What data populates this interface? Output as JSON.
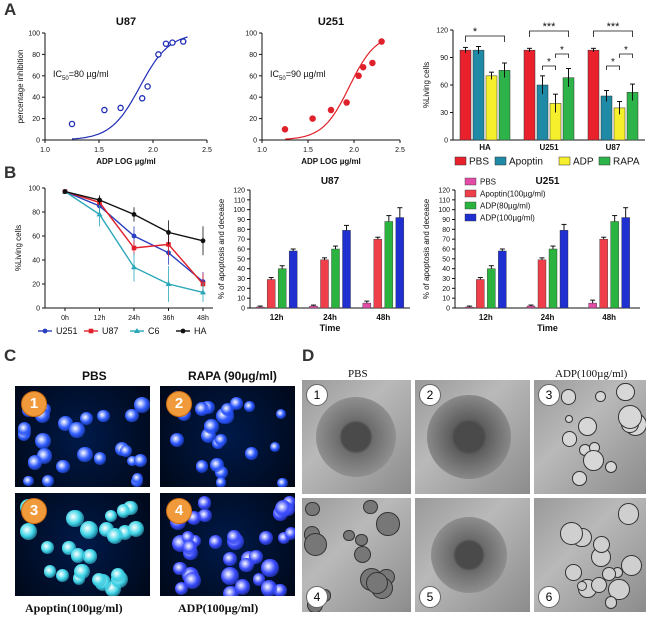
{
  "labels": {
    "A": "A",
    "B": "B",
    "C": "C",
    "D": "D"
  },
  "colors": {
    "PBS": "#e8212c",
    "Apoptin": "#1f8aa5",
    "ADP": "#f6ef2b",
    "RAPA": "#2db34a",
    "U251": "#2a3fbf",
    "U87": "#e0202a",
    "C6": "#2aa7b9",
    "HA": "#111111",
    "Apoptin100": "#ef3f4a",
    "ADP80": "#2bb33f",
    "ADP100": "#1f2fd0",
    "PBSb": "#e24ba6"
  },
  "chart_data": [
    {
      "id": "u87-curve",
      "type": "scatter",
      "title": "U87",
      "xlabel": "ADP LOG µg/ml",
      "ylabel": "percentage inhibition",
      "xlim": [
        1.0,
        2.5
      ],
      "ylim": [
        0,
        100
      ],
      "xticks": [
        "1.0",
        "1.5",
        "2.0",
        "2.5"
      ],
      "yticks": [
        "0",
        "20",
        "40",
        "60",
        "80",
        "100"
      ],
      "annotation": {
        "prefix": "IC",
        "sub": "50",
        "suffix": "=80 µg/ml"
      },
      "x": [
        1.25,
        1.55,
        1.7,
        1.9,
        1.95,
        2.05,
        2.12,
        2.18,
        2.28
      ],
      "y": [
        15,
        28,
        30,
        39,
        50,
        80,
        90,
        91,
        92
      ],
      "fit": {
        "ic50": 1.88,
        "hill": 3.2,
        "min": 0,
        "max": 100
      },
      "color": "#1f2db5",
      "marker": "open"
    },
    {
      "id": "u251-curve",
      "type": "scatter",
      "title": "U251",
      "xlabel": "ADP LOG µg/ml",
      "ylabel": "",
      "xlim": [
        1.0,
        2.5
      ],
      "ylim": [
        0,
        100
      ],
      "xticks": [
        "1.0",
        "1.5",
        "2.0",
        "2.5"
      ],
      "yticks": [
        "0",
        "20",
        "40",
        "60",
        "80",
        "100"
      ],
      "annotation": {
        "prefix": "IC",
        "sub": "50",
        "suffix": "=90 µg/ml"
      },
      "x": [
        1.25,
        1.55,
        1.75,
        1.92,
        2.05,
        2.1,
        2.2,
        2.3
      ],
      "y": [
        10,
        20,
        28,
        35,
        60,
        68,
        72,
        92
      ],
      "fit": {
        "ic50": 1.95,
        "hill": 3.0,
        "min": 0,
        "max": 100
      },
      "color": "#e0202a",
      "marker": "filled"
    },
    {
      "id": "living-bar",
      "type": "bar",
      "title": "",
      "ylabel": "%Living cells",
      "ylim": [
        0,
        120
      ],
      "yticks": [
        "0",
        "30",
        "60",
        "90",
        "120"
      ],
      "categories": [
        "HA",
        "U251",
        "U87"
      ],
      "series": [
        {
          "name": "PBS",
          "values": [
            98,
            98,
            98
          ],
          "err": [
            3,
            2,
            2
          ]
        },
        {
          "name": "Apoptin",
          "values": [
            98,
            60,
            48
          ],
          "err": [
            4,
            10,
            6
          ]
        },
        {
          "name": "ADP",
          "values": [
            70,
            40,
            35
          ],
          "err": [
            4,
            10,
            7
          ]
        },
        {
          "name": "RAPA",
          "values": [
            76,
            68,
            52
          ],
          "err": [
            8,
            10,
            9
          ]
        }
      ],
      "legend": [
        "PBS",
        "Apoptin",
        "ADP",
        "RAPA"
      ],
      "significance": [
        {
          "cat": 0,
          "marks": [
            "*"
          ]
        },
        {
          "cat": 1,
          "marks": [
            "***",
            "*",
            "*"
          ]
        },
        {
          "cat": 2,
          "marks": [
            "***",
            "*",
            "*"
          ]
        }
      ]
    },
    {
      "id": "time-line",
      "type": "line",
      "title": "",
      "ylabel": "%Living cells",
      "ylim": [
        0,
        100
      ],
      "yticks": [
        "0",
        "20",
        "40",
        "60",
        "80",
        "100"
      ],
      "categories": [
        "0h",
        "12h",
        "24h",
        "36h",
        "48h"
      ],
      "series": [
        {
          "name": "U251",
          "values": [
            97,
            85,
            60,
            46,
            22
          ],
          "err": [
            2,
            6,
            8,
            10,
            8
          ]
        },
        {
          "name": "U87",
          "values": [
            97,
            88,
            50,
            53,
            20
          ],
          "err": [
            2,
            5,
            6,
            10,
            9
          ]
        },
        {
          "name": "C6",
          "values": [
            97,
            78,
            34,
            20,
            13
          ],
          "err": [
            2,
            10,
            12,
            15,
            8
          ]
        },
        {
          "name": "HA",
          "values": [
            97,
            90,
            78,
            63,
            56
          ],
          "err": [
            2,
            4,
            6,
            10,
            12
          ]
        }
      ],
      "legend": [
        "U251",
        "U87",
        "C6",
        "HA"
      ]
    },
    {
      "id": "u87-apoptosis",
      "type": "bar",
      "title": "U87",
      "xlabel": "Time",
      "ylabel": "% of apoptosis and decease",
      "ylim": [
        0,
        120
      ],
      "yticks": [
        "0",
        "10",
        "20",
        "30",
        "40",
        "50",
        "60",
        "70",
        "80",
        "90",
        "100",
        "110",
        "120"
      ],
      "categories": [
        "12h",
        "24h",
        "48h"
      ],
      "series": [
        {
          "name": "PBS",
          "values": [
            1,
            2,
            5
          ],
          "err": [
            1,
            1,
            2
          ]
        },
        {
          "name": "Apoptin(100µg/ml)",
          "values": [
            29,
            49,
            70
          ],
          "err": [
            2,
            2,
            2
          ]
        },
        {
          "name": "ADP(80µg/ml)",
          "values": [
            40,
            60,
            88
          ],
          "err": [
            3,
            3,
            6
          ]
        },
        {
          "name": "ADP(100µg/ml)",
          "values": [
            58,
            79,
            92
          ],
          "err": [
            2,
            5,
            10
          ]
        }
      ]
    },
    {
      "id": "u251-apoptosis",
      "type": "bar",
      "title": "U251",
      "xlabel": "Time",
      "ylabel": "% of apoptosis and decease",
      "ylim": [
        0,
        120
      ],
      "yticks": [
        "0",
        "10",
        "20",
        "30",
        "40",
        "50",
        "60",
        "70",
        "80",
        "90",
        "100",
        "110",
        "120"
      ],
      "categories": [
        "12h",
        "24h",
        "48h"
      ],
      "series": [
        {
          "name": "PBS",
          "values": [
            1,
            2,
            5
          ],
          "err": [
            1,
            1,
            3
          ]
        },
        {
          "name": "Apoptin(100µg/ml)",
          "values": [
            29,
            49,
            70
          ],
          "err": [
            2,
            2,
            2
          ]
        },
        {
          "name": "ADP(80µg/ml)",
          "values": [
            40,
            60,
            88
          ],
          "err": [
            3,
            3,
            6
          ]
        },
        {
          "name": "ADP(100µg/ml)",
          "values": [
            58,
            79,
            92
          ],
          "err": [
            2,
            6,
            10
          ]
        }
      ],
      "legend": [
        "PBS",
        "Apoptin(100µg/ml)",
        "ADP(80µg/ml)",
        "ADP(100µg/ml)"
      ]
    }
  ],
  "panelC": {
    "col1": "PBS",
    "col2": "RAPA (90µg/ml)",
    "bottom1": "Apoptin(100µg/ml)",
    "bottom2": "ADP(100µg/ml)",
    "badges": [
      "1",
      "2",
      "3",
      "4"
    ]
  },
  "panelD": {
    "title1": "PBS",
    "title3": "ADP(100µg/ml)",
    "numbers": [
      "1",
      "2",
      "3",
      "4",
      "5",
      "6"
    ]
  }
}
